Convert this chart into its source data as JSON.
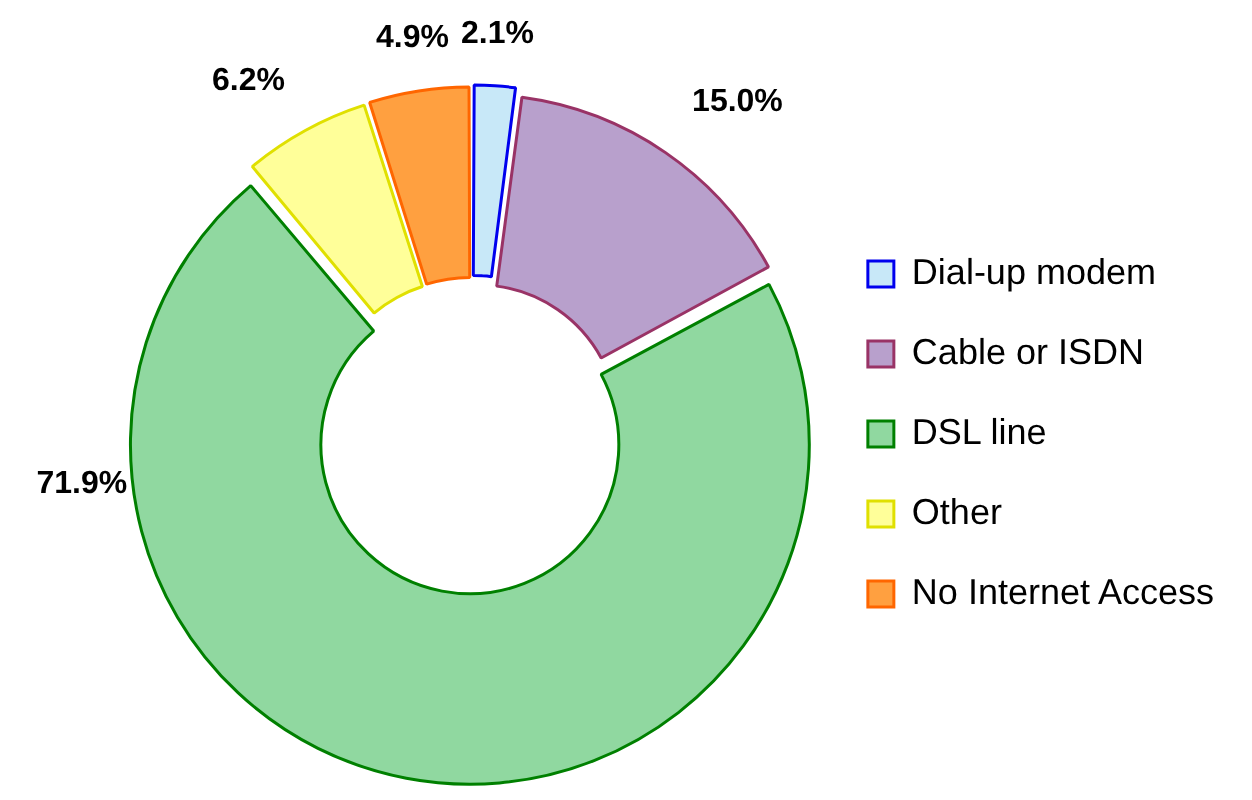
{
  "chart_data": {
    "type": "donut",
    "categories": [
      "Dial-up modem",
      "Cable or ISDN",
      "DSL line",
      "Other",
      "No Internet Access"
    ],
    "values": [
      2.1,
      15.0,
      71.9,
      6.2,
      4.9
    ],
    "value_labels": [
      "2.1%",
      "15.0%",
      "71.9%",
      "6.2%",
      "4.9%"
    ],
    "colors": [
      "#c8e8f8",
      "#b8a0cc",
      "#90d8a0",
      "#ffff99",
      "#ffa040"
    ],
    "legend": "right"
  }
}
